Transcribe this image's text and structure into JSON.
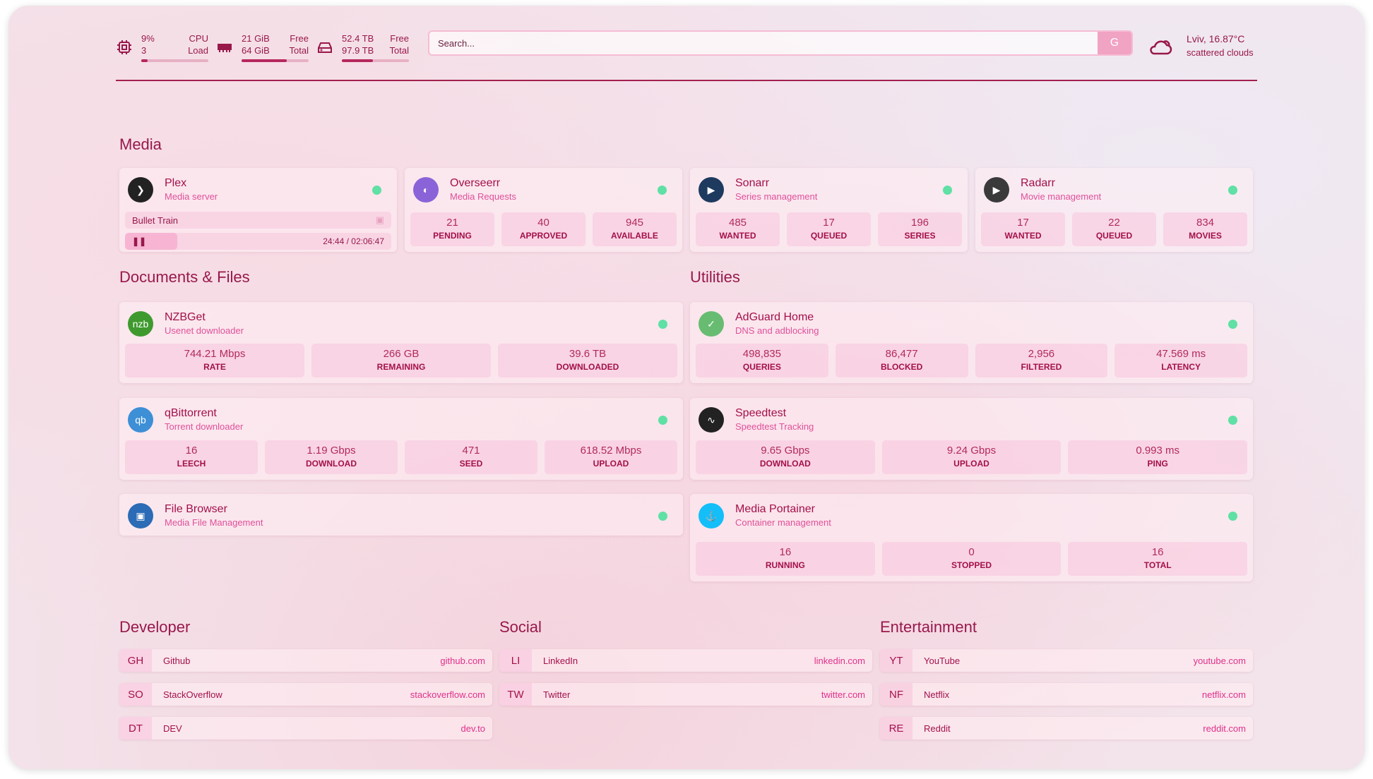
{
  "header": {
    "cpu": {
      "value": "9%",
      "sub": "3",
      "label": "CPU",
      "label2": "Load",
      "fill": 9,
      "icon": "cpu-icon"
    },
    "memory": {
      "value": "21 GiB",
      "sub": "64 GiB",
      "label": "Free",
      "label2": "Total",
      "fill": 67,
      "icon": "memory-icon"
    },
    "disk": {
      "value": "52.4 TB",
      "sub": "97.9 TB",
      "label": "Free",
      "label2": "Total",
      "fill": 46,
      "icon": "disk-icon"
    },
    "search": {
      "placeholder": "Search...",
      "button": "G"
    },
    "weather": {
      "location": "Lviv, 16.87°C",
      "condition": "scattered clouds",
      "icon": "cloud-icon"
    }
  },
  "colors": {
    "accent": "#98184a",
    "status_ok": "#5fe0a4"
  },
  "sections": {
    "media": "Media",
    "documents": "Documents & Files",
    "utilities": "Utilities",
    "developer": "Developer",
    "social": "Social",
    "entertainment": "Entertainment"
  },
  "media": [
    {
      "name": "Plex",
      "desc": "Media server",
      "icon_color": "#222",
      "icon_text": "❯",
      "now_playing": {
        "title": "Bullet Train",
        "time": "24:44 / 02:06:47",
        "progress": 19.5
      }
    },
    {
      "name": "Overseerr",
      "desc": "Media Requests",
      "icon_color": "#8a63d8",
      "icon_text": "◐",
      "stats": [
        {
          "v": "21",
          "l": "PENDING"
        },
        {
          "v": "40",
          "l": "APPROVED"
        },
        {
          "v": "945",
          "l": "AVAILABLE"
        }
      ]
    },
    {
      "name": "Sonarr",
      "desc": "Series management",
      "icon_color": "#1e3a5f",
      "icon_text": "▶",
      "stats": [
        {
          "v": "485",
          "l": "WANTED"
        },
        {
          "v": "17",
          "l": "QUEUED"
        },
        {
          "v": "196",
          "l": "SERIES"
        }
      ]
    },
    {
      "name": "Radarr",
      "desc": "Movie management",
      "icon_color": "#3a3a3a",
      "icon_text": "▶",
      "stats": [
        {
          "v": "17",
          "l": "WANTED"
        },
        {
          "v": "22",
          "l": "QUEUED"
        },
        {
          "v": "834",
          "l": "MOVIES"
        }
      ]
    }
  ],
  "documents": [
    {
      "name": "NZBGet",
      "desc": "Usenet downloader",
      "icon_color": "#3e9a2e",
      "icon_text": "nzb",
      "stats": [
        {
          "v": "744.21 Mbps",
          "l": "RATE"
        },
        {
          "v": "266 GB",
          "l": "REMAINING"
        },
        {
          "v": "39.6 TB",
          "l": "DOWNLOADED"
        }
      ]
    },
    {
      "name": "qBittorrent",
      "desc": "Torrent downloader",
      "icon_color": "#3d8fd6",
      "icon_text": "qb",
      "stats": [
        {
          "v": "16",
          "l": "LEECH"
        },
        {
          "v": "1.19 Gbps",
          "l": "DOWNLOAD"
        },
        {
          "v": "471",
          "l": "SEED"
        },
        {
          "v": "618.52 Mbps",
          "l": "UPLOAD"
        }
      ]
    },
    {
      "name": "File Browser",
      "desc": "Media File Management",
      "icon_color": "#2c6bb5",
      "icon_text": "▣"
    }
  ],
  "utilities": [
    {
      "name": "AdGuard Home",
      "desc": "DNS and adblocking",
      "icon_color": "#68bc71",
      "icon_text": "✓",
      "stats": [
        {
          "v": "498,835",
          "l": "QUERIES"
        },
        {
          "v": "86,477",
          "l": "BLOCKED"
        },
        {
          "v": "2,956",
          "l": "FILTERED"
        },
        {
          "v": "47.569 ms",
          "l": "LATENCY"
        }
      ]
    },
    {
      "name": "Speedtest",
      "desc": "Speedtest Tracking",
      "icon_color": "#222",
      "icon_text": "∿",
      "stats": [
        {
          "v": "9.65 Gbps",
          "l": "DOWNLOAD"
        },
        {
          "v": "9.24 Gbps",
          "l": "UPLOAD"
        },
        {
          "v": "0.993 ms",
          "l": "PING"
        }
      ]
    },
    {
      "name": "Media Portainer",
      "desc": "Container management",
      "icon_color": "#13bef9",
      "icon_text": "⚓",
      "stats": [
        {
          "v": "16",
          "l": "RUNNING"
        },
        {
          "v": "0",
          "l": "STOPPED"
        },
        {
          "v": "16",
          "l": "TOTAL"
        }
      ]
    }
  ],
  "bookmarks": {
    "developer": [
      {
        "abbr": "GH",
        "name": "Github",
        "url": "github.com"
      },
      {
        "abbr": "SO",
        "name": "StackOverflow",
        "url": "stackoverflow.com"
      },
      {
        "abbr": "DT",
        "name": "DEV",
        "url": "dev.to"
      }
    ],
    "social": [
      {
        "abbr": "LI",
        "name": "LinkedIn",
        "url": "linkedin.com"
      },
      {
        "abbr": "TW",
        "name": "Twitter",
        "url": "twitter.com"
      }
    ],
    "entertainment": [
      {
        "abbr": "YT",
        "name": "YouTube",
        "url": "youtube.com"
      },
      {
        "abbr": "NF",
        "name": "Netflix",
        "url": "netflix.com"
      },
      {
        "abbr": "RE",
        "name": "Reddit",
        "url": "reddit.com"
      }
    ]
  }
}
